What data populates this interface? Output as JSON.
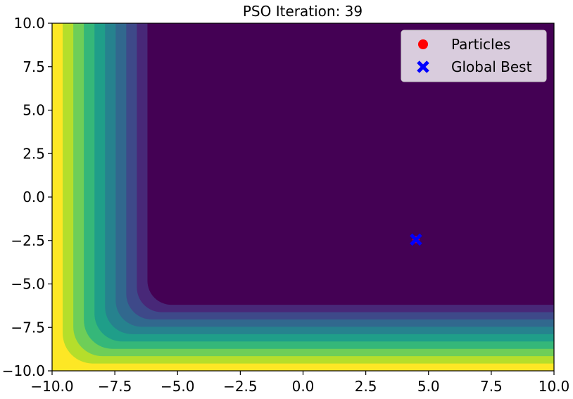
{
  "chart_data": {
    "type": "contour",
    "title": "PSO Iteration: 39",
    "xlabel": "",
    "ylabel": "",
    "xlim": [
      -10,
      10
    ],
    "ylim": [
      -10,
      10
    ],
    "x_ticks": [
      -10,
      -7.5,
      -5,
      -2.5,
      0,
      2.5,
      5,
      7.5,
      10
    ],
    "y_ticks": [
      -10,
      -7.5,
      -5,
      -2.5,
      0,
      2.5,
      5,
      7.5,
      10
    ],
    "x_tick_labels": [
      "−10.0",
      "−7.5",
      "−5.0",
      "−2.5",
      "0.0",
      "2.5",
      "5.0",
      "7.5",
      "10.0"
    ],
    "y_tick_labels": [
      "−10.0",
      "−7.5",
      "−5.0",
      "−2.5",
      "0.0",
      "2.5",
      "5.0",
      "7.5",
      "10.0"
    ],
    "grid": false,
    "colormap": "viridis",
    "colormap_stops": [
      "#440154",
      "#482878",
      "#3e4989",
      "#31688e",
      "#26828e",
      "#1f9e89",
      "#35b779",
      "#6ece58",
      "#b5de2b",
      "#fde725"
    ],
    "contour_levels": 10,
    "minimum_region": {
      "x": [
        -6.2,
        10
      ],
      "y": [
        -6.2,
        10
      ]
    },
    "series": [
      {
        "name": "Particles",
        "marker": "circle",
        "color": "#ff0000",
        "points": [
          [
            4.5,
            -2.45
          ]
        ]
      },
      {
        "name": "Global Best",
        "marker": "x",
        "color": "#0000ff",
        "points": [
          [
            4.5,
            -2.45
          ]
        ]
      }
    ],
    "legend": {
      "position": "top-right",
      "entries": [
        "Particles",
        "Global Best"
      ]
    }
  }
}
